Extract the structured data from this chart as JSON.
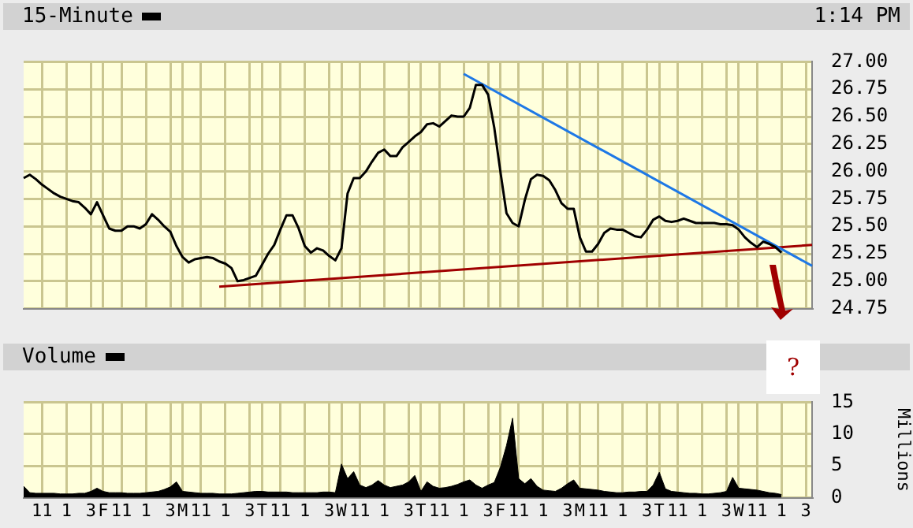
{
  "chart_data": [
    {
      "type": "line",
      "title": "15-Minute",
      "annotations": [
        "1:14 PM"
      ],
      "ylim": [
        24.75,
        27
      ],
      "categories": [
        null,
        null,
        null,
        null,
        null,
        null,
        null,
        null,
        null,
        null,
        null,
        null,
        null,
        null,
        null,
        null,
        null,
        null,
        null,
        null,
        null,
        null,
        null,
        null,
        null,
        null,
        null,
        null,
        null,
        null,
        null,
        null,
        null,
        null,
        null,
        null,
        null,
        null,
        null,
        null,
        null,
        null,
        null,
        null,
        null,
        null,
        null,
        null,
        null,
        null,
        null,
        null,
        null,
        null,
        null,
        null,
        null,
        null,
        null,
        null,
        null,
        null,
        null,
        null,
        null,
        null,
        null,
        null,
        null,
        null,
        null,
        null,
        null,
        null,
        null,
        null,
        null,
        null,
        null,
        null,
        null,
        null,
        null,
        null,
        null,
        null,
        null,
        null,
        null,
        null,
        null,
        null,
        null,
        null,
        null,
        null,
        null,
        null,
        null,
        null,
        null,
        null,
        null,
        null,
        null,
        null,
        null,
        null,
        null,
        null,
        null,
        null,
        null,
        null,
        null,
        null,
        null,
        null,
        null,
        null,
        null,
        null,
        null,
        null,
        null,
        null,
        null,
        null,
        null,
        null
      ],
      "yticks": [
        {
          "value": 24.75,
          "label": "24.75"
        },
        {
          "value": 25,
          "label": "25.00"
        },
        {
          "value": 25.25,
          "label": "25.25"
        },
        {
          "value": 25.5,
          "label": "25.50"
        },
        {
          "value": 25.75,
          "label": "25.75"
        },
        {
          "value": 26,
          "label": "26.00"
        },
        {
          "value": 26.25,
          "label": "26.25"
        },
        {
          "value": 26.5,
          "label": "26.50"
        },
        {
          "value": 26.75,
          "label": "26.75"
        },
        {
          "value": 27,
          "label": "27.00"
        }
      ],
      "tick_labels": "y",
      "grid": true,
      "legend": false,
      "marker": "none",
      "series": [
        {
          "color": "#000000",
          "values": [
            25.94,
            25.97,
            25.93,
            25.88,
            25.84,
            25.8,
            25.77,
            25.75,
            25.73,
            25.72,
            25.67,
            25.61,
            25.72,
            25.6,
            25.48,
            25.46,
            25.46,
            25.5,
            25.5,
            25.48,
            25.52,
            25.61,
            25.56,
            25.5,
            25.45,
            25.32,
            25.22,
            25.17,
            25.2,
            25.21,
            25.22,
            25.21,
            25.18,
            25.16,
            25.12,
            25.0,
            25.01,
            25.03,
            25.05,
            25.15,
            25.25,
            25.33,
            25.47,
            25.6,
            25.6,
            25.48,
            25.32,
            25.26,
            25.3,
            25.28,
            25.23,
            25.19,
            25.3,
            25.8,
            25.94,
            25.94,
            26.0,
            26.09,
            26.17,
            26.2,
            26.14,
            26.14,
            26.22,
            26.27,
            26.32,
            26.36,
            26.43,
            26.44,
            26.41,
            26.46,
            26.51,
            26.5,
            26.5,
            26.58,
            26.79,
            26.79,
            26.7,
            26.4,
            26.0,
            25.62,
            25.53,
            25.5,
            25.74,
            25.93,
            25.97,
            25.96,
            25.92,
            25.83,
            25.71,
            25.66,
            25.66,
            25.4,
            25.27,
            25.27,
            25.34,
            25.44,
            25.48,
            25.47,
            25.47,
            25.44,
            25.41,
            25.4,
            25.47,
            25.56,
            25.59,
            25.55,
            25.54,
            25.55,
            25.57,
            25.55,
            25.53,
            25.53,
            25.53,
            25.53,
            25.52,
            25.52,
            25.51,
            25.47,
            25.4,
            25.35,
            25.31,
            25.36,
            25.34,
            25.31,
            25.26,
            null,
            null,
            null,
            null,
            null
          ]
        },
        {
          "color": "#1e78e6",
          "values": [
            null,
            null,
            null,
            null,
            null,
            null,
            null,
            null,
            null,
            null,
            null,
            null,
            null,
            null,
            null,
            null,
            null,
            null,
            null,
            null,
            null,
            null,
            null,
            null,
            null,
            null,
            null,
            null,
            null,
            null,
            null,
            null,
            null,
            null,
            null,
            null,
            null,
            null,
            null,
            null,
            null,
            null,
            null,
            null,
            null,
            null,
            null,
            null,
            null,
            null,
            null,
            null,
            null,
            null,
            null,
            null,
            null,
            null,
            null,
            null,
            null,
            null,
            null,
            null,
            null,
            null,
            null,
            null,
            null,
            null,
            null,
            null,
            26.89,
            null,
            null,
            null,
            null,
            null,
            null,
            null,
            null,
            null,
            null,
            null,
            null,
            null,
            null,
            null,
            null,
            null,
            null,
            null,
            null,
            null,
            null,
            null,
            null,
            null,
            null,
            null,
            null,
            null,
            null,
            null,
            null,
            null,
            null,
            null,
            null,
            null,
            null,
            null,
            null,
            null,
            null,
            null,
            null,
            null,
            null,
            null,
            null,
            null,
            null,
            null,
            null,
            null,
            null,
            null,
            null,
            25.14
          ]
        },
        {
          "color": "#a00000",
          "values": [
            null,
            null,
            null,
            null,
            null,
            null,
            null,
            null,
            null,
            null,
            null,
            null,
            null,
            null,
            null,
            null,
            null,
            null,
            null,
            null,
            null,
            null,
            null,
            null,
            null,
            null,
            null,
            null,
            null,
            null,
            null,
            null,
            24.95,
            null,
            null,
            null,
            null,
            null,
            null,
            null,
            null,
            null,
            null,
            null,
            null,
            null,
            null,
            null,
            null,
            null,
            null,
            null,
            null,
            null,
            null,
            null,
            null,
            null,
            null,
            null,
            null,
            null,
            null,
            null,
            null,
            null,
            null,
            null,
            null,
            null,
            null,
            null,
            null,
            null,
            null,
            null,
            null,
            null,
            null,
            null,
            null,
            null,
            null,
            null,
            null,
            null,
            null,
            null,
            null,
            null,
            null,
            null,
            null,
            null,
            null,
            null,
            null,
            null,
            null,
            null,
            null,
            null,
            null,
            null,
            null,
            null,
            null,
            null,
            null,
            null,
            null,
            null,
            null,
            null,
            null,
            null,
            null,
            null,
            null,
            null,
            null,
            null,
            null,
            null,
            null,
            null,
            null,
            null,
            null,
            25.33
          ]
        }
      ]
    },
    {
      "type": "area",
      "title": "Volume",
      "ylabel": "Millions",
      "annotations": [
        "?"
      ],
      "ylim": [
        0,
        15
      ],
      "categories": [
        null,
        null,
        null,
        "11",
        null,
        null,
        null,
        "1",
        null,
        null,
        null,
        "3",
        null,
        "F",
        null,
        null,
        "11",
        null,
        null,
        null,
        "1",
        null,
        null,
        null,
        "3",
        null,
        "M",
        null,
        null,
        "11",
        null,
        null,
        null,
        "1",
        null,
        null,
        null,
        "3",
        null,
        "T",
        null,
        null,
        "11",
        null,
        null,
        null,
        "1",
        null,
        null,
        null,
        "3",
        null,
        "W",
        null,
        null,
        "11",
        null,
        null,
        null,
        "1",
        null,
        null,
        null,
        "3",
        null,
        "T",
        null,
        null,
        "11",
        null,
        null,
        null,
        "1",
        null,
        null,
        null,
        "3",
        null,
        "F",
        null,
        null,
        "11",
        null,
        null,
        null,
        "1",
        null,
        null,
        null,
        "3",
        null,
        "M",
        null,
        null,
        "11",
        null,
        null,
        null,
        "1",
        null,
        null,
        null,
        "3",
        null,
        "T",
        null,
        null,
        "11",
        null,
        null,
        null,
        "1",
        null,
        null,
        null,
        "3",
        null,
        "W",
        null,
        null,
        "11",
        null,
        null,
        null,
        "1",
        null,
        null,
        null,
        "3",
        null
      ],
      "yticks": [
        0,
        5,
        10,
        15
      ],
      "grid": true,
      "legend": false,
      "marker": "none",
      "series": [
        {
          "color": "#000000",
          "values": [
            1.8,
            0.8,
            0.7,
            0.7,
            0.7,
            0.7,
            0.6,
            0.6,
            0.6,
            0.7,
            0.7,
            1.0,
            1.5,
            1.0,
            0.8,
            0.8,
            0.8,
            0.7,
            0.7,
            0.7,
            0.8,
            0.9,
            1.0,
            1.3,
            1.7,
            2.5,
            1.0,
            0.9,
            0.8,
            0.7,
            0.7,
            0.7,
            0.6,
            0.6,
            0.6,
            0.7,
            0.8,
            0.9,
            1.0,
            1.0,
            0.9,
            0.9,
            0.9,
            0.9,
            0.8,
            0.8,
            0.8,
            0.8,
            0.8,
            0.9,
            0.9,
            0.8,
            5.3,
            3.0,
            4.1,
            2.0,
            1.6,
            2.0,
            2.7,
            2.0,
            1.6,
            1.8,
            2.0,
            2.5,
            3.5,
            1.0,
            2.5,
            1.8,
            1.5,
            1.6,
            1.8,
            2.1,
            2.5,
            2.8,
            2.0,
            1.5,
            2.0,
            2.4,
            4.8,
            8.2,
            12.5,
            3.0,
            2.2,
            3.0,
            1.8,
            1.2,
            1.1,
            1.0,
            1.5,
            2.2,
            2.8,
            1.5,
            1.4,
            1.3,
            1.2,
            1.0,
            0.9,
            0.8,
            0.8,
            0.9,
            0.9,
            1.0,
            1.0,
            2.0,
            4.0,
            1.4,
            1.0,
            0.9,
            0.8,
            0.7,
            0.7,
            0.6,
            0.6,
            0.7,
            0.8,
            1.0,
            3.2,
            1.5,
            1.4,
            1.3,
            1.2,
            1.0,
            0.8,
            0.7,
            0.5,
            null,
            null,
            null,
            null,
            null
          ]
        }
      ]
    }
  ]
}
